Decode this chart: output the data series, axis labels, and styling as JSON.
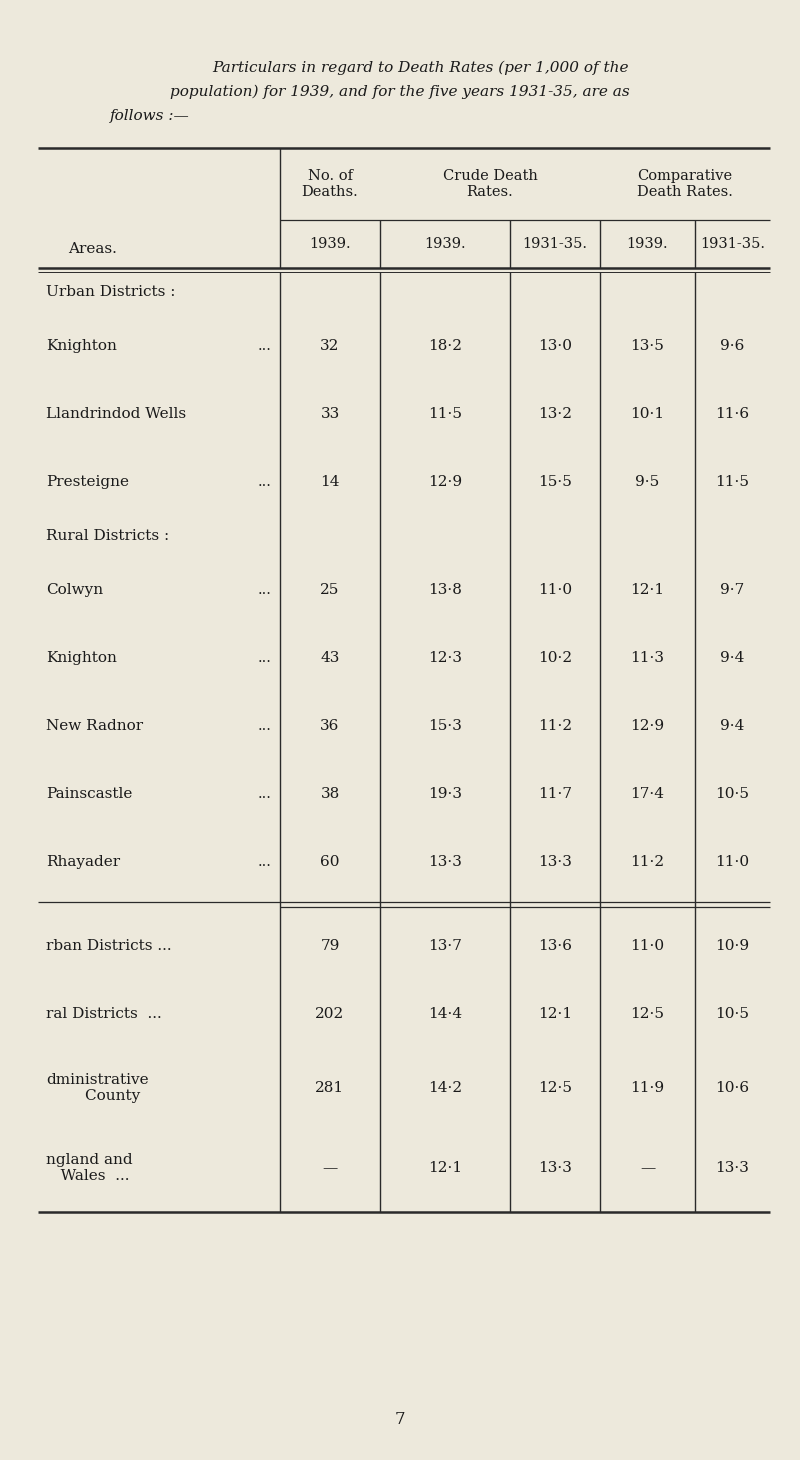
{
  "title_line1": "Particulars in regard to Death Rates (per 1,000 of the",
  "title_line2": "population) for 1939, and for the five years 1931-35, are as",
  "title_line3": "follows :—",
  "bg_color": "#ede9dc",
  "sections": [
    {
      "section_label": "Urban Districts :",
      "rows": [
        [
          "Knighton",
          "...",
          "32",
          "18·2",
          "13·0",
          "13·5",
          "9·6"
        ],
        [
          "Llandrindod Wells",
          "",
          "33",
          "11·5",
          "13·2",
          "10·1",
          "11·6"
        ],
        [
          "Presteigne",
          "...",
          "14",
          "12·9",
          "15·5",
          "9·5",
          "11·5"
        ]
      ]
    },
    {
      "section_label": "Rural Districts :",
      "rows": [
        [
          "Colwyn",
          "...",
          "25",
          "13·8",
          "11·0",
          "12·1",
          "9·7"
        ],
        [
          "Knighton",
          "...",
          "43",
          "12·3",
          "10·2",
          "11·3",
          "9·4"
        ],
        [
          "New Radnor",
          "...",
          "36",
          "15·3",
          "11·2",
          "12·9",
          "9·4"
        ],
        [
          "Painscastle",
          "...",
          "38",
          "19·3",
          "11·7",
          "17·4",
          "10·5"
        ],
        [
          "Rhayader",
          "...",
          "60",
          "13·3",
          "13·3",
          "11·2",
          "11·0"
        ]
      ]
    }
  ],
  "summary_rows": [
    [
      "rban Districts ...",
      "79",
      "13·7",
      "13·6",
      "11·0",
      "10·9"
    ],
    [
      "ral Districts  ...",
      "202",
      "14·4",
      "12·1",
      "12·5",
      "10·5"
    ],
    [
      "dministrative\n        County",
      "281",
      "14·2",
      "12·5",
      "11·9",
      "10·6"
    ],
    [
      "ngland and\n   Wales  ...",
      "—",
      "12·1",
      "13·3",
      "—",
      "13·3"
    ]
  ],
  "footer_page": "7"
}
